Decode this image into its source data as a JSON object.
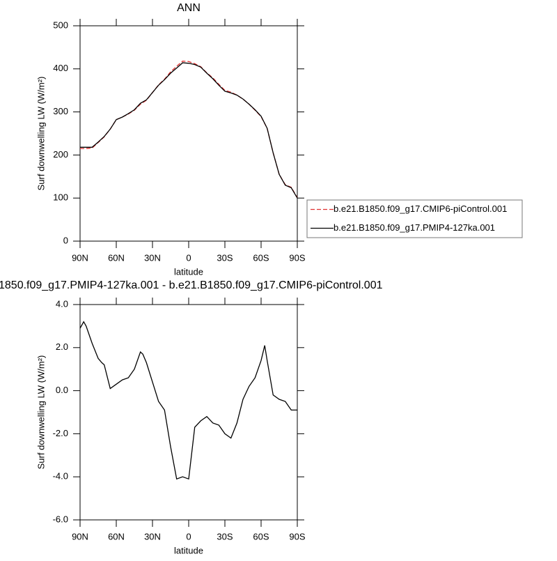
{
  "chart_data": [
    {
      "type": "line",
      "title": "ANN",
      "xlabel": "latitude",
      "ylabel": "Surf downwelling LW (W/m²)",
      "x": [
        90,
        85,
        80,
        75,
        70,
        65,
        60,
        55,
        50,
        45,
        40,
        35,
        30,
        25,
        20,
        15,
        10,
        5,
        0,
        -5,
        -10,
        -15,
        -20,
        -25,
        -30,
        -35,
        -40,
        -45,
        -50,
        -55,
        -60,
        -65,
        -70,
        -75,
        -80,
        -85,
        -90
      ],
      "series": [
        {
          "name": "b.e21.B1850.f09_g17.CMIP6-piControl.001",
          "color": "#e03030",
          "dash": true,
          "values": [
            215,
            215,
            216,
            229,
            242,
            260,
            282,
            288,
            295,
            304,
            318,
            327,
            345,
            363,
            376,
            393,
            406,
            418,
            417,
            412,
            405,
            391,
            379,
            364,
            350,
            346,
            339,
            330,
            318,
            304,
            289,
            262,
            205,
            155,
            131,
            125,
            101
          ]
        },
        {
          "name": "b.e21.B1850.f09_g17.PMIP4-127ka.001",
          "color": "#000000",
          "dash": false,
          "values": [
            218,
            218,
            218,
            230,
            243,
            260,
            282,
            288,
            296,
            305,
            320,
            328,
            345,
            362,
            375,
            390,
            402,
            414,
            413,
            410,
            404,
            390,
            377,
            362,
            348,
            344,
            339,
            330,
            318,
            305,
            290,
            262,
            205,
            155,
            130,
            124,
            100
          ]
        }
      ],
      "xlim": [
        90,
        -90
      ],
      "xticks": [
        {
          "value": 90,
          "label": "90N"
        },
        {
          "value": 60,
          "label": "60N"
        },
        {
          "value": 30,
          "label": "30N"
        },
        {
          "value": 0,
          "label": "0"
        },
        {
          "value": -30,
          "label": "30S"
        },
        {
          "value": -60,
          "label": "60S"
        },
        {
          "value": -90,
          "label": "90S"
        }
      ],
      "ylim": [
        0,
        500
      ],
      "yticks": [
        0,
        100,
        200,
        300,
        400,
        500
      ],
      "legend": "right"
    },
    {
      "type": "line",
      "title": "1850.f09_g17.PMIP4-127ka.001 - b.e21.B1850.f09_g17.CMIP6-piControl.001",
      "xlabel": "latitude",
      "ylabel": "Surf downwelling LW (W/m²)",
      "x": [
        90,
        87,
        85,
        80,
        75,
        72,
        70,
        65,
        60,
        55,
        50,
        45,
        40,
        38,
        35,
        30,
        25,
        20,
        15,
        10,
        5,
        0,
        -5,
        -10,
        -15,
        -20,
        -25,
        -30,
        -35,
        -40,
        -45,
        -50,
        -55,
        -60,
        -63,
        -65,
        -70,
        -75,
        -80,
        -85,
        -90
      ],
      "series": [
        {
          "color": "#000000",
          "values": [
            2.9,
            3.2,
            3.0,
            2.2,
            1.5,
            1.3,
            1.2,
            0.1,
            0.3,
            0.5,
            0.6,
            1.0,
            1.8,
            1.7,
            1.3,
            0.4,
            -0.5,
            -0.9,
            -2.6,
            -4.1,
            -4.0,
            -4.1,
            -1.7,
            -1.4,
            -1.2,
            -1.5,
            -1.6,
            -2.0,
            -2.2,
            -1.5,
            -0.4,
            0.2,
            0.6,
            1.4,
            2.1,
            1.4,
            -0.2,
            -0.4,
            -0.5,
            -0.9,
            -0.9
          ]
        }
      ],
      "xlim": [
        90,
        -90
      ],
      "xticks": [
        {
          "value": 90,
          "label": "90N"
        },
        {
          "value": 60,
          "label": "60N"
        },
        {
          "value": 30,
          "label": "30N"
        },
        {
          "value": 0,
          "label": "0"
        },
        {
          "value": -30,
          "label": "30S"
        },
        {
          "value": -60,
          "label": "60S"
        },
        {
          "value": -90,
          "label": "90S"
        }
      ],
      "ylim": [
        -6,
        4
      ],
      "yticks": [
        {
          "value": -6,
          "label": "-6.0"
        },
        {
          "value": -4,
          "label": "-4.0"
        },
        {
          "value": -2,
          "label": "-2.0"
        },
        {
          "value": 0,
          "label": "0.0"
        },
        {
          "value": 2,
          "label": "2.0"
        },
        {
          "value": 4,
          "label": "4.0"
        }
      ]
    }
  ]
}
